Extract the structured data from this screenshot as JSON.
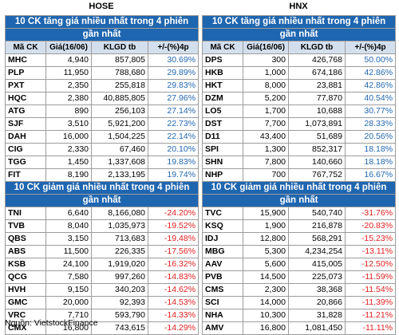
{
  "exchanges": {
    "left": "HOSE",
    "right": "HNX"
  },
  "sections": {
    "up_title_line1": "10 CK tăng giá nhiều nhất trong 4 phiên",
    "up_title_line2": "gần nhất",
    "down_title_line1": "10 CK giảm giá nhiều nhất trong 4 phiên",
    "down_title_line2": "gần nhất"
  },
  "columns": [
    "Mã CK",
    "Giá(16/06)",
    "KLGD tb",
    "+/-(%)4p"
  ],
  "hose_up": [
    [
      "MHC",
      "4,940",
      "857,805",
      "30.69%"
    ],
    [
      "PLP",
      "11,950",
      "788,680",
      "29.89%"
    ],
    [
      "PXT",
      "2,350",
      "255,818",
      "29.83%"
    ],
    [
      "HQC",
      "2,380",
      "40,885,805",
      "27.96%"
    ],
    [
      "ATG",
      "890",
      "256,103",
      "27.14%"
    ],
    [
      "SJF",
      "3,510",
      "5,921,200",
      "22.73%"
    ],
    [
      "DAH",
      "16,000",
      "1,504,225",
      "22.14%"
    ],
    [
      "CIG",
      "2,330",
      "67,460",
      "20.10%"
    ],
    [
      "TGG",
      "1,450",
      "1,337,608",
      "19.83%"
    ],
    [
      "FIT",
      "8,190",
      "2,133,195",
      "19.74%"
    ]
  ],
  "hnx_up": [
    [
      "DPS",
      "300",
      "426,768",
      "50.00%"
    ],
    [
      "HKB",
      "1,000",
      "674,186",
      "42.86%"
    ],
    [
      "HKT",
      "8,000",
      "23,881",
      "42.86%"
    ],
    [
      "DZM",
      "5,200",
      "77,870",
      "40.54%"
    ],
    [
      "LO5",
      "1,700",
      "10,688",
      "30.77%"
    ],
    [
      "DST",
      "7,700",
      "1,073,891",
      "28.33%"
    ],
    [
      "D11",
      "43,400",
      "51,689",
      "20.56%"
    ],
    [
      "SPI",
      "1,300",
      "852,317",
      "18.18%"
    ],
    [
      "SHN",
      "7,800",
      "140,660",
      "18.18%"
    ],
    [
      "NHP",
      "700",
      "767,752",
      "16.67%"
    ]
  ],
  "hose_down": [
    [
      "TNI",
      "6,640",
      "8,166,080",
      "-24.20%"
    ],
    [
      "TVB",
      "8,040",
      "1,035,973",
      "-19.52%"
    ],
    [
      "QBS",
      "3,150",
      "713,683",
      "-19.48%"
    ],
    [
      "ABS",
      "11,500",
      "226,335",
      "-17.56%"
    ],
    [
      "KSB",
      "24,100",
      "1,919,020",
      "-16.32%"
    ],
    [
      "QCG",
      "7,580",
      "997,260",
      "-14.83%"
    ],
    [
      "HVH",
      "9,150",
      "340,203",
      "-14.62%"
    ],
    [
      "GMC",
      "20,000",
      "92,393",
      "-14.53%"
    ],
    [
      "VRC",
      "7,710",
      "593,790",
      "-14.33%"
    ],
    [
      "CMX",
      "16,800",
      "743,615",
      "-14.29%"
    ]
  ],
  "hnx_down": [
    [
      "TVC",
      "15,900",
      "540,740",
      "-31.76%"
    ],
    [
      "KSQ",
      "1,900",
      "216,878",
      "-20.83%"
    ],
    [
      "IDJ",
      "12,800",
      "568,291",
      "-15.23%"
    ],
    [
      "MBG",
      "5,300",
      "4,234,254",
      "-13.11%"
    ],
    [
      "AAV",
      "5,600",
      "415,005",
      "-12.50%"
    ],
    [
      "PVB",
      "14,500",
      "225,073",
      "-11.59%"
    ],
    [
      "CMS",
      "2,300",
      "38,368",
      "-11.54%"
    ],
    [
      "SCI",
      "14,000",
      "20,866",
      "-11.39%"
    ],
    [
      "NHA",
      "10,300",
      "31,828",
      "-11.21%"
    ],
    [
      "AMV",
      "16,800",
      "1,081,450",
      "-11.11%"
    ]
  ],
  "source": "Nguồn: VietstockFinance",
  "colors": {
    "header_blue": "#1f66b0",
    "col_header_bg": "#d3dfed",
    "negative_red": "#e02020",
    "positive_blue": "#1f66b0"
  }
}
